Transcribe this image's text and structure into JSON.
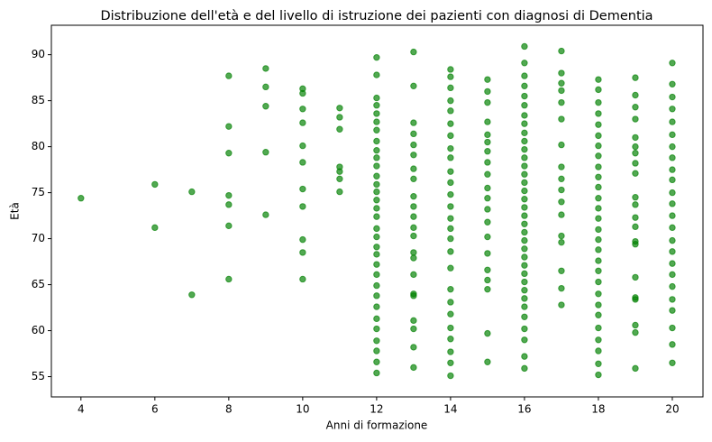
{
  "chart_data": {
    "type": "scatter",
    "title": "Distribuzione dell'età e del livello di istruzione dei pazienti con diagnosi di Dementia",
    "xlabel": "Anni di formazione",
    "ylabel": "Età",
    "color": "#008000",
    "grid": false,
    "xlim": [
      3.2,
      20.83
    ],
    "ylim": [
      52.8,
      93.2
    ],
    "xticks": [
      4,
      6,
      8,
      10,
      12,
      14,
      16,
      18,
      20
    ],
    "yticks": [
      55,
      60,
      65,
      70,
      75,
      80,
      85,
      90
    ],
    "x": [
      4,
      6,
      6,
      7,
      7,
      8,
      8,
      8,
      8,
      8,
      8,
      8,
      9,
      9,
      9,
      9,
      9,
      10,
      10,
      10,
      10,
      10,
      10,
      10,
      10,
      10,
      10,
      10,
      11,
      11,
      11,
      11,
      11,
      11,
      11,
      12,
      12,
      12,
      12,
      12,
      12,
      12,
      12,
      12,
      12,
      12,
      12,
      12,
      12,
      12,
      12,
      12,
      12,
      12,
      12,
      12,
      12,
      12,
      12,
      12,
      12,
      12,
      12,
      12,
      12,
      12,
      12,
      13,
      13,
      13,
      13,
      13,
      13,
      13,
      13,
      13,
      13,
      13,
      13,
      13,
      13,
      13,
      13,
      13,
      13,
      13,
      13,
      13,
      13,
      14,
      14,
      14,
      14,
      14,
      14,
      14,
      14,
      14,
      14,
      14,
      14,
      14,
      14,
      14,
      14,
      14,
      14,
      14,
      14,
      14,
      14,
      14,
      14,
      14,
      14,
      15,
      15,
      15,
      15,
      15,
      15,
      15,
      15,
      15,
      15,
      15,
      15,
      15,
      15,
      15,
      15,
      15,
      15,
      15,
      15,
      16,
      16,
      16,
      16,
      16,
      16,
      16,
      16,
      16,
      16,
      16,
      16,
      16,
      16,
      16,
      16,
      16,
      16,
      16,
      16,
      16,
      16,
      16,
      16,
      16,
      16,
      16,
      16,
      16,
      16,
      16,
      16,
      16,
      16,
      16,
      17,
      17,
      17,
      17,
      17,
      17,
      17,
      17,
      17,
      17,
      17,
      17,
      17,
      17,
      17,
      17,
      17,
      18,
      18,
      18,
      18,
      18,
      18,
      18,
      18,
      18,
      18,
      18,
      18,
      18,
      18,
      18,
      18,
      18,
      18,
      18,
      18,
      18,
      18,
      18,
      18,
      18,
      18,
      18,
      18,
      19,
      19,
      19,
      19,
      19,
      19,
      19,
      19,
      19,
      19,
      19,
      19,
      19,
      19,
      19,
      19,
      19,
      19,
      19,
      19,
      19,
      20,
      20,
      20,
      20,
      20,
      20,
      20,
      20,
      20,
      20,
      20,
      20,
      20,
      20,
      20,
      20,
      20,
      20,
      20,
      20,
      20,
      20,
      20,
      20
    ],
    "y": [
      74.4,
      75.9,
      71.2,
      75.1,
      63.9,
      87.7,
      82.2,
      79.3,
      74.7,
      73.7,
      71.4,
      65.6,
      88.5,
      86.5,
      84.4,
      79.4,
      72.6,
      86.3,
      85.8,
      84.1,
      82.6,
      80.1,
      78.3,
      75.4,
      73.5,
      69.9,
      68.5,
      65.6,
      84.2,
      83.2,
      81.9,
      77.8,
      77.3,
      76.5,
      75.1,
      89.7,
      87.8,
      85.3,
      84.5,
      83.6,
      82.7,
      81.8,
      80.6,
      79.6,
      78.8,
      77.9,
      76.8,
      75.9,
      75.1,
      74.2,
      73.3,
      72.4,
      71.1,
      70.2,
      69.1,
      68.3,
      67.2,
      66.1,
      64.9,
      63.8,
      62.6,
      61.3,
      60.2,
      58.9,
      57.8,
      56.6,
      55.4,
      90.3,
      86.6,
      82.6,
      81.4,
      80.2,
      79.1,
      77.6,
      76.5,
      74.6,
      73.5,
      72.4,
      71.2,
      70.3,
      68.5,
      67.9,
      66.1,
      64.0,
      63.8,
      61.1,
      60.2,
      58.2,
      56.0,
      88.4,
      87.6,
      86.4,
      85.0,
      83.9,
      82.5,
      81.2,
      79.8,
      78.8,
      77.3,
      76.1,
      74.8,
      73.5,
      72.2,
      71.1,
      70.0,
      68.6,
      66.8,
      64.5,
      63.1,
      61.8,
      60.3,
      59.1,
      57.7,
      56.5,
      55.1,
      87.3,
      86.0,
      84.8,
      82.7,
      81.3,
      80.5,
      79.5,
      78.3,
      77.0,
      75.5,
      74.4,
      73.2,
      71.8,
      70.2,
      68.4,
      66.6,
      65.5,
      64.5,
      59.7,
      56.6,
      90.9,
      89.1,
      87.7,
      86.6,
      85.5,
      84.5,
      83.4,
      82.5,
      81.5,
      80.6,
      79.7,
      78.8,
      77.9,
      77.0,
      76.1,
      75.2,
      74.3,
      73.4,
      72.5,
      71.6,
      70.7,
      69.8,
      68.9,
      68.0,
      67.1,
      66.2,
      65.3,
      64.4,
      63.5,
      62.6,
      61.5,
      60.2,
      59.0,
      57.2,
      55.9,
      90.4,
      88.0,
      86.9,
      86.1,
      84.8,
      83.0,
      80.2,
      77.8,
      76.5,
      75.3,
      74.0,
      72.6,
      70.3,
      69.6,
      66.5,
      64.6,
      62.8,
      87.3,
      86.2,
      84.8,
      83.6,
      82.4,
      81.2,
      80.1,
      79.0,
      77.8,
      76.7,
      75.6,
      74.4,
      73.3,
      72.2,
      71.0,
      69.9,
      68.8,
      67.6,
      66.5,
      65.3,
      64.0,
      62.8,
      61.7,
      60.3,
      59.0,
      57.8,
      56.4,
      55.2,
      87.5,
      85.6,
      84.3,
      83.0,
      81.0,
      80.0,
      79.3,
      78.2,
      77.1,
      74.5,
      73.7,
      72.3,
      71.3,
      69.7,
      69.4,
      65.8,
      63.6,
      63.4,
      60.6,
      59.8,
      55.9,
      89.1,
      86.8,
      85.4,
      84.1,
      82.7,
      81.3,
      80.0,
      78.8,
      77.5,
      76.4,
      75.0,
      73.8,
      72.5,
      71.2,
      69.8,
      68.6,
      67.3,
      66.1,
      64.8,
      63.4,
      62.2,
      60.3,
      58.5,
      56.5
    ]
  }
}
